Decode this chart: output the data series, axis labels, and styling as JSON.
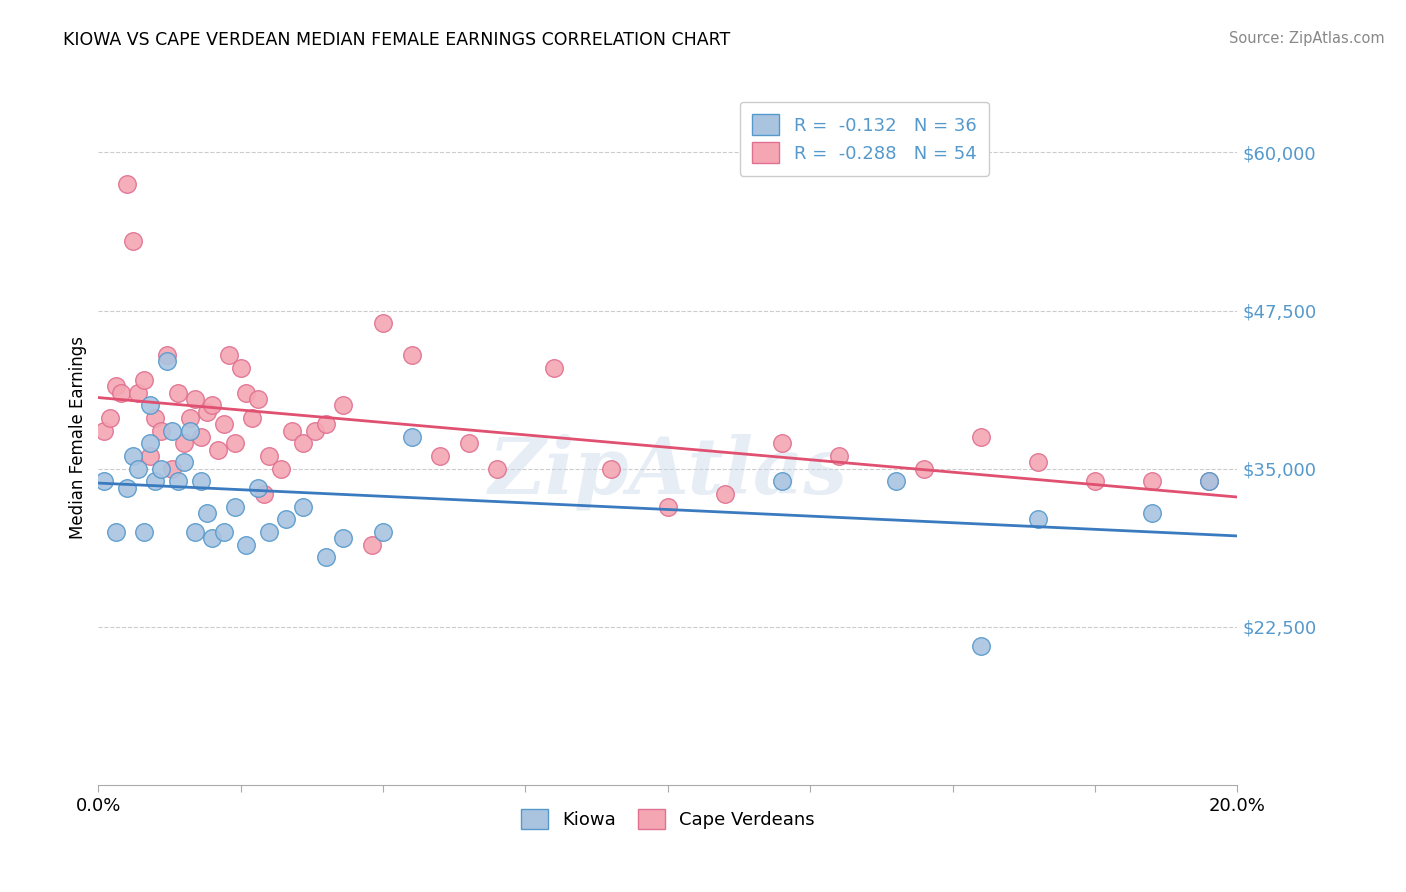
{
  "title": "KIOWA VS CAPE VERDEAN MEDIAN FEMALE EARNINGS CORRELATION CHART",
  "source": "Source: ZipAtlas.com",
  "ylabel": "Median Female Earnings",
  "watermark": "ZipAtlas",
  "xlim": [
    0.0,
    0.2
  ],
  "ylim": [
    10000,
    65000
  ],
  "yticks": [
    22500,
    35000,
    47500,
    60000
  ],
  "ytick_labels": [
    "$22,500",
    "$35,000",
    "$47,500",
    "$60,000"
  ],
  "xticks": [
    0.0,
    0.025,
    0.05,
    0.075,
    0.1,
    0.125,
    0.15,
    0.175,
    0.2
  ],
  "xtick_labels": [
    "0.0%",
    "",
    "",
    "",
    "",
    "",
    "",
    "",
    "20.0%"
  ],
  "legend_r_kiowa": "-0.132",
  "legend_n_kiowa": "36",
  "legend_r_cape": "-0.288",
  "legend_n_cape": "54",
  "kiowa_fill": "#aac4e0",
  "cape_fill": "#f4a7b3",
  "kiowa_edge": "#5599cc",
  "cape_edge": "#e07090",
  "kiowa_line": "#3a7abf",
  "cape_line": "#e05070",
  "tick_color": "#5599cc",
  "kiowa_x": [
    0.001,
    0.003,
    0.005,
    0.006,
    0.007,
    0.008,
    0.009,
    0.009,
    0.01,
    0.011,
    0.012,
    0.013,
    0.014,
    0.015,
    0.016,
    0.017,
    0.018,
    0.019,
    0.02,
    0.022,
    0.024,
    0.026,
    0.028,
    0.03,
    0.033,
    0.036,
    0.04,
    0.043,
    0.05,
    0.055,
    0.12,
    0.14,
    0.155,
    0.165,
    0.185,
    0.195
  ],
  "kiowa_y": [
    34000,
    30000,
    33500,
    36000,
    35000,
    30000,
    40000,
    37000,
    34000,
    35000,
    43500,
    38000,
    34000,
    35500,
    38000,
    30000,
    34000,
    31500,
    29500,
    30000,
    32000,
    29000,
    33500,
    30000,
    31000,
    32000,
    28000,
    29500,
    30000,
    37500,
    34000,
    34000,
    21000,
    31000,
    31500,
    34000
  ],
  "cape_x": [
    0.001,
    0.002,
    0.003,
    0.004,
    0.005,
    0.006,
    0.007,
    0.008,
    0.009,
    0.01,
    0.011,
    0.012,
    0.013,
    0.014,
    0.015,
    0.016,
    0.017,
    0.018,
    0.019,
    0.02,
    0.021,
    0.022,
    0.023,
    0.024,
    0.025,
    0.026,
    0.027,
    0.028,
    0.029,
    0.03,
    0.032,
    0.034,
    0.036,
    0.038,
    0.04,
    0.043,
    0.048,
    0.05,
    0.055,
    0.06,
    0.065,
    0.07,
    0.08,
    0.09,
    0.1,
    0.11,
    0.12,
    0.13,
    0.145,
    0.155,
    0.165,
    0.175,
    0.185,
    0.195
  ],
  "cape_y": [
    38000,
    39000,
    41500,
    41000,
    57500,
    53000,
    41000,
    42000,
    36000,
    39000,
    38000,
    44000,
    35000,
    41000,
    37000,
    39000,
    40500,
    37500,
    39500,
    40000,
    36500,
    38500,
    44000,
    37000,
    43000,
    41000,
    39000,
    40500,
    33000,
    36000,
    35000,
    38000,
    37000,
    38000,
    38500,
    40000,
    29000,
    46500,
    44000,
    36000,
    37000,
    35000,
    43000,
    35000,
    32000,
    33000,
    37000,
    36000,
    35000,
    37500,
    35500,
    34000,
    34000,
    34000
  ]
}
